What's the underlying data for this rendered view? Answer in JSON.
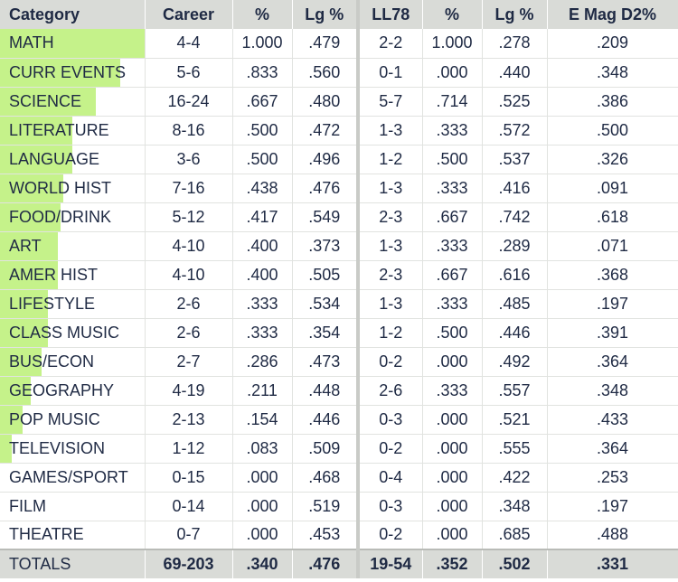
{
  "table": {
    "headers": [
      "Category",
      "Career",
      "%",
      "Lg %",
      "LL78",
      "%",
      "Lg %",
      "E Mag D2%"
    ],
    "rows": [
      {
        "category": "MATH",
        "career": "4-4",
        "pct": "1.000",
        "lg_pct": ".479",
        "ll78": "2-2",
        "ll_pct": "1.000",
        "ll_lg_pct": ".278",
        "emag": ".209",
        "bar_fraction": 1.0
      },
      {
        "category": "CURR EVENTS",
        "career": "5-6",
        "pct": ".833",
        "lg_pct": ".560",
        "ll78": "0-1",
        "ll_pct": ".000",
        "ll_lg_pct": ".440",
        "emag": ".348",
        "bar_fraction": 0.833
      },
      {
        "category": "SCIENCE",
        "career": "16-24",
        "pct": ".667",
        "lg_pct": ".480",
        "ll78": "5-7",
        "ll_pct": ".714",
        "ll_lg_pct": ".525",
        "emag": ".386",
        "bar_fraction": 0.667
      },
      {
        "category": "LITERATURE",
        "career": "8-16",
        "pct": ".500",
        "lg_pct": ".472",
        "ll78": "1-3",
        "ll_pct": ".333",
        "ll_lg_pct": ".572",
        "emag": ".500",
        "bar_fraction": 0.5
      },
      {
        "category": "LANGUAGE",
        "career": "3-6",
        "pct": ".500",
        "lg_pct": ".496",
        "ll78": "1-2",
        "ll_pct": ".500",
        "ll_lg_pct": ".537",
        "emag": ".326",
        "bar_fraction": 0.5
      },
      {
        "category": "WORLD HIST",
        "career": "7-16",
        "pct": ".438",
        "lg_pct": ".476",
        "ll78": "1-3",
        "ll_pct": ".333",
        "ll_lg_pct": ".416",
        "emag": ".091",
        "bar_fraction": 0.438
      },
      {
        "category": "FOOD/DRINK",
        "career": "5-12",
        "pct": ".417",
        "lg_pct": ".549",
        "ll78": "2-3",
        "ll_pct": ".667",
        "ll_lg_pct": ".742",
        "emag": ".618",
        "bar_fraction": 0.417
      },
      {
        "category": "ART",
        "career": "4-10",
        "pct": ".400",
        "lg_pct": ".373",
        "ll78": "1-3",
        "ll_pct": ".333",
        "ll_lg_pct": ".289",
        "emag": ".071",
        "bar_fraction": 0.4
      },
      {
        "category": "AMER HIST",
        "career": "4-10",
        "pct": ".400",
        "lg_pct": ".505",
        "ll78": "2-3",
        "ll_pct": ".667",
        "ll_lg_pct": ".616",
        "emag": ".368",
        "bar_fraction": 0.4
      },
      {
        "category": "LIFESTYLE",
        "career": "2-6",
        "pct": ".333",
        "lg_pct": ".534",
        "ll78": "1-3",
        "ll_pct": ".333",
        "ll_lg_pct": ".485",
        "emag": ".197",
        "bar_fraction": 0.333
      },
      {
        "category": "CLASS MUSIC",
        "career": "2-6",
        "pct": ".333",
        "lg_pct": ".354",
        "ll78": "1-2",
        "ll_pct": ".500",
        "ll_lg_pct": ".446",
        "emag": ".391",
        "bar_fraction": 0.333
      },
      {
        "category": "BUS/ECON",
        "career": "2-7",
        "pct": ".286",
        "lg_pct": ".473",
        "ll78": "0-2",
        "ll_pct": ".000",
        "ll_lg_pct": ".492",
        "emag": ".364",
        "bar_fraction": 0.286
      },
      {
        "category": "GEOGRAPHY",
        "career": "4-19",
        "pct": ".211",
        "lg_pct": ".448",
        "ll78": "2-6",
        "ll_pct": ".333",
        "ll_lg_pct": ".557",
        "emag": ".348",
        "bar_fraction": 0.211
      },
      {
        "category": "POP MUSIC",
        "career": "2-13",
        "pct": ".154",
        "lg_pct": ".446",
        "ll78": "0-3",
        "ll_pct": ".000",
        "ll_lg_pct": ".521",
        "emag": ".433",
        "bar_fraction": 0.154
      },
      {
        "category": "TELEVISION",
        "career": "1-12",
        "pct": ".083",
        "lg_pct": ".509",
        "ll78": "0-2",
        "ll_pct": ".000",
        "ll_lg_pct": ".555",
        "emag": ".364",
        "bar_fraction": 0.083
      },
      {
        "category": "GAMES/SPORT",
        "career": "0-15",
        "pct": ".000",
        "lg_pct": ".468",
        "ll78": "0-4",
        "ll_pct": ".000",
        "ll_lg_pct": ".422",
        "emag": ".253",
        "bar_fraction": 0.0
      },
      {
        "category": "FILM",
        "career": "0-14",
        "pct": ".000",
        "lg_pct": ".519",
        "ll78": "0-3",
        "ll_pct": ".000",
        "ll_lg_pct": ".348",
        "emag": ".197",
        "bar_fraction": 0.0
      },
      {
        "category": "THEATRE",
        "career": "0-7",
        "pct": ".000",
        "lg_pct": ".453",
        "ll78": "0-2",
        "ll_pct": ".000",
        "ll_lg_pct": ".685",
        "emag": ".488",
        "bar_fraction": 0.0
      }
    ],
    "totals": {
      "label": "TOTALS",
      "career": "69-203",
      "pct": ".340",
      "lg_pct": ".476",
      "ll78": "19-54",
      "ll_pct": ".352",
      "ll_lg_pct": ".502",
      "emag": ".331"
    }
  },
  "colors": {
    "bar": "#c5f28a",
    "header_bg": "#d9dbd7",
    "text": "#1f2a44"
  }
}
